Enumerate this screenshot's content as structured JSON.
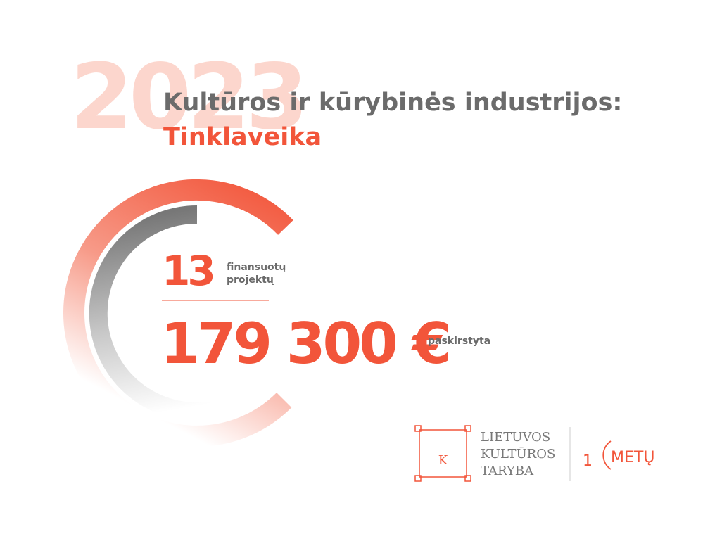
{
  "background_year": "2023",
  "header": {
    "title": "Kultūros ir kūrybinės industrijos:",
    "subtitle": "Tinklaveika"
  },
  "stats": [
    {
      "value": "13",
      "label_lines": [
        "finansuotų",
        "projektų"
      ]
    },
    {
      "value": "179 300 €",
      "label_lines": [
        "paskirstyta"
      ]
    }
  ],
  "logo": {
    "letter": "K",
    "lines": [
      "LIETUVOS",
      "KULTŪROS",
      "TARYBA"
    ],
    "anniversary_digit": "1",
    "anniversary_text": "METŲ"
  }
}
